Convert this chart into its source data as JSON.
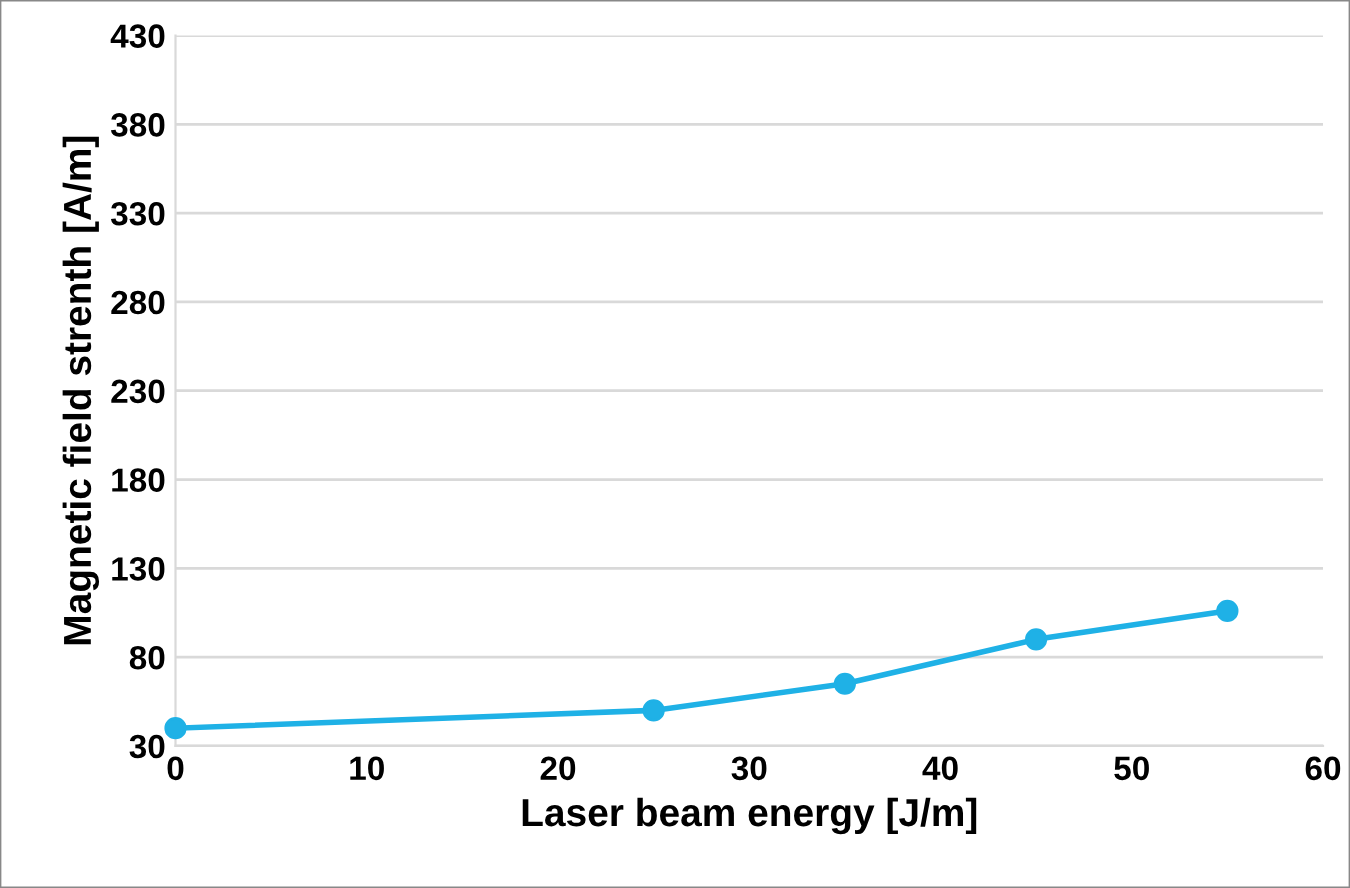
{
  "chart_data": {
    "type": "line",
    "xlabel": "Laser beam energy [J/m]",
    "ylabel": "Magnetic field strenth [A/m]",
    "x": [
      0,
      25,
      35,
      45,
      55
    ],
    "series": [
      {
        "color": "#1fb1e6",
        "values": [
          40,
          50,
          65,
          90,
          106
        ]
      }
    ],
    "xlim": [
      0,
      60
    ],
    "xticks": [
      0,
      10,
      20,
      30,
      40,
      50,
      60
    ],
    "ylim": [
      30,
      430
    ],
    "yticks": [
      30,
      80,
      130,
      180,
      230,
      280,
      330,
      380,
      430
    ],
    "grid": "y",
    "marker": "circle",
    "line_style": "solid"
  }
}
